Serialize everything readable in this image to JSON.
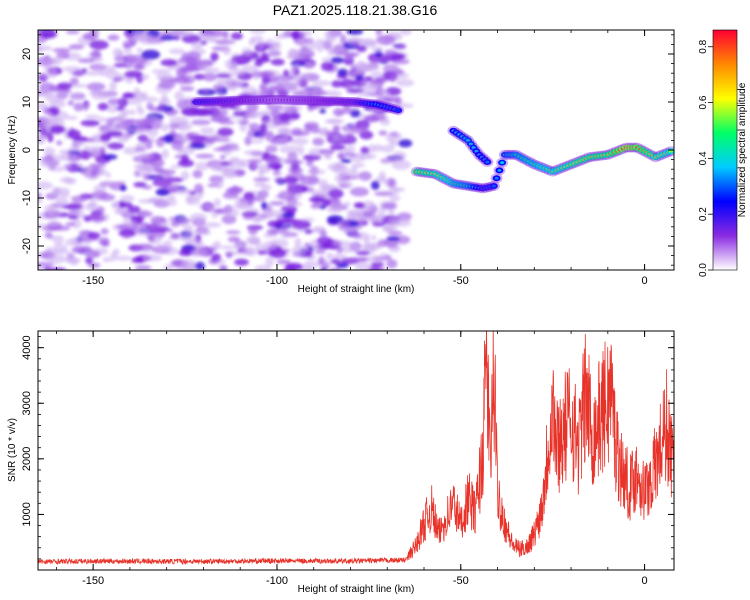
{
  "title": "PAZ1.2025.118.21.38.G16",
  "chart_data": [
    {
      "type": "heatmap",
      "name": "spectrogram",
      "xlabel": "Height of straight line (km)",
      "ylabel": "Frequency (Hz)",
      "xlim": [
        -165,
        8
      ],
      "ylim": [
        -25,
        25
      ],
      "xticks": [
        -150,
        -100,
        -50,
        0
      ],
      "xtick_labels": [
        "-150",
        "-100",
        "-50",
        "0"
      ],
      "yticks": [
        -20,
        -10,
        0,
        10,
        20
      ],
      "ytick_labels": [
        "-20",
        "-10",
        "0",
        "10",
        "20"
      ],
      "colorbar": {
        "label": "Normalized spectral amplitude",
        "range": [
          0,
          0.86
        ],
        "ticks": [
          0,
          0.2,
          0.4,
          0.6,
          0.8
        ],
        "tick_labels": [
          "0.0",
          "0.2",
          "0.4",
          "0.6",
          "0.8"
        ],
        "colormap": [
          "#ffffff",
          "#8a2be2",
          "#0000ff",
          "#00ccff",
          "#00ff66",
          "#ffff00",
          "#ff8800",
          "#ff0033"
        ]
      },
      "noise_region_x": [
        -165,
        -65
      ],
      "signal_ridge": [
        {
          "x": -122,
          "f": 10,
          "a": 0.25
        },
        {
          "x": -100,
          "f": 10.5,
          "a": 0.12
        },
        {
          "x": -79,
          "f": 10,
          "a": 0.2
        },
        {
          "x": -73,
          "f": 9.5,
          "a": 0.35
        },
        {
          "x": -68,
          "f": 8.5,
          "a": 0.3
        },
        {
          "x": -66,
          "f": 8,
          "a": 0.25
        },
        {
          "x": -62,
          "f": -4.5,
          "a": 0.65
        },
        {
          "x": -57,
          "f": -5,
          "a": 0.6
        },
        {
          "x": -52,
          "f": -7,
          "a": 0.5
        },
        {
          "x": -48,
          "f": -7.5,
          "a": 0.45
        },
        {
          "x": -44,
          "f": -8,
          "a": 0.3
        },
        {
          "x": -41,
          "f": -7.5,
          "a": 0.3
        },
        {
          "x": -38,
          "f": -1,
          "a": 0.4
        },
        {
          "x": -35,
          "f": -1,
          "a": 0.45
        },
        {
          "x": -30,
          "f": -3,
          "a": 0.5
        },
        {
          "x": -25,
          "f": -4.5,
          "a": 0.55
        },
        {
          "x": -20,
          "f": -3,
          "a": 0.6
        },
        {
          "x": -15,
          "f": -1.5,
          "a": 0.65
        },
        {
          "x": -10,
          "f": -1,
          "a": 0.65
        },
        {
          "x": -5,
          "f": 0.5,
          "a": 0.8
        },
        {
          "x": -2,
          "f": 0.5,
          "a": 0.75
        },
        {
          "x": 3,
          "f": -1.5,
          "a": 0.6
        },
        {
          "x": 8,
          "f": 0,
          "a": 0.55
        }
      ],
      "secondary_branch": [
        {
          "x": -52,
          "f": 4,
          "a": 0.35
        },
        {
          "x": -48,
          "f": 2,
          "a": 0.4
        },
        {
          "x": -45,
          "f": -1,
          "a": 0.35
        },
        {
          "x": -42,
          "f": -3,
          "a": 0.3
        }
      ]
    },
    {
      "type": "line",
      "name": "snr",
      "xlabel": "Height of straight line (km)",
      "ylabel": "SNR (10 * v/v)",
      "xlim": [
        -165,
        8
      ],
      "ylim": [
        0,
        4300
      ],
      "xticks": [
        -150,
        -100,
        -50,
        0
      ],
      "xtick_labels": [
        "-150",
        "-100",
        "-50",
        "0"
      ],
      "yticks": [
        1000,
        2000,
        3000,
        4000
      ],
      "ytick_labels": [
        "1000",
        "2000",
        "3000",
        "4000"
      ],
      "color": "#e8332a",
      "x": [
        -165,
        -150,
        -120,
        -100,
        -80,
        -65,
        -62,
        -60,
        -58,
        -56,
        -54,
        -52,
        -50,
        -48,
        -46,
        -44,
        -43,
        -42,
        -41,
        -40,
        -38,
        -36,
        -34,
        -32,
        -30,
        -28,
        -26,
        -25,
        -24,
        -22,
        -20,
        -18,
        -16,
        -14,
        -12,
        -10,
        -9,
        -8,
        -6,
        -4,
        -2,
        0,
        2,
        4,
        6,
        8
      ],
      "y": [
        150,
        160,
        155,
        165,
        160,
        180,
        500,
        900,
        1200,
        700,
        1000,
        1300,
        900,
        1400,
        1100,
        2300,
        4200,
        2000,
        3900,
        1500,
        900,
        500,
        400,
        450,
        700,
        1200,
        2600,
        3300,
        2400,
        2700,
        3000,
        2400,
        3400,
        2600,
        3000,
        3300,
        3500,
        2500,
        1900,
        1600,
        1900,
        1500,
        1800,
        2300,
        2800,
        1900
      ]
    }
  ]
}
